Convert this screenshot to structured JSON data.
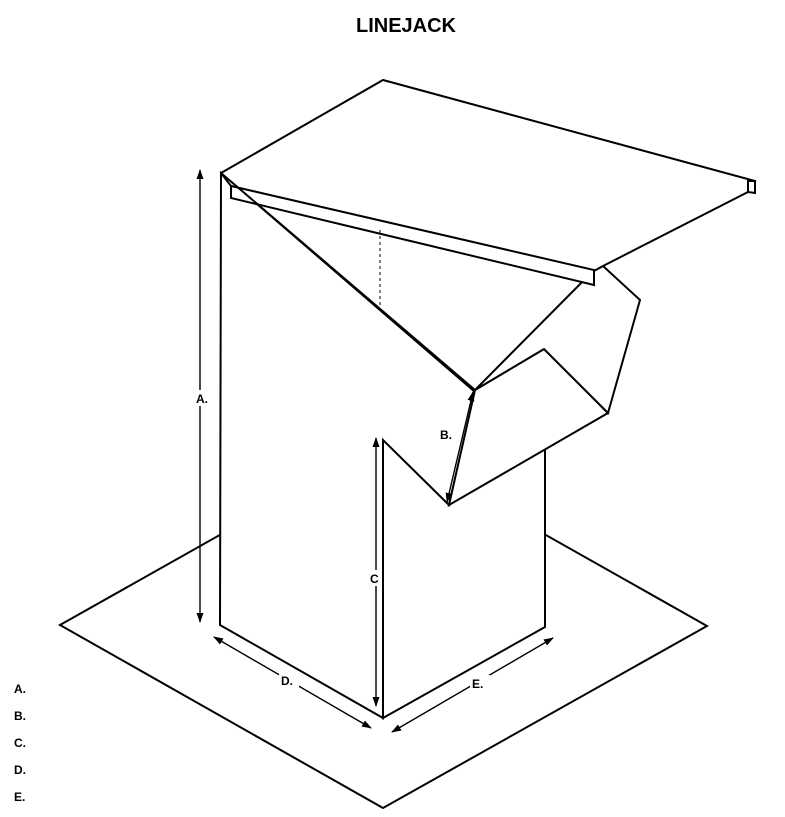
{
  "title": "LINEJACK",
  "dimensions": {
    "a": "A.",
    "b": "B.",
    "c": "C",
    "d": "D.",
    "e": "E."
  },
  "legend": [
    "A.",
    "B.",
    "C.",
    "D.",
    "E."
  ]
}
